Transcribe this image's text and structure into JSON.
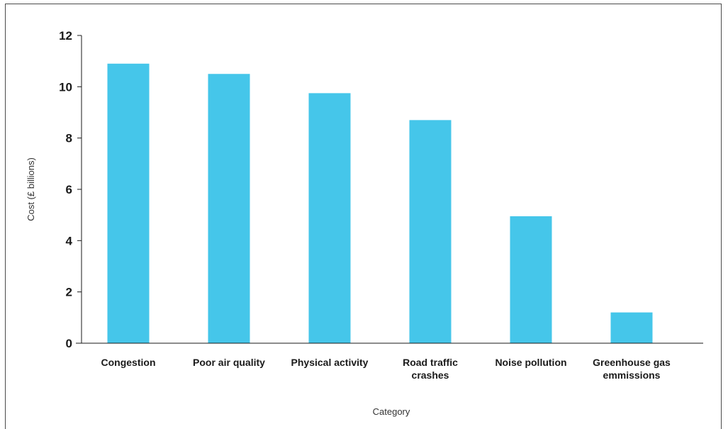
{
  "chart_data": {
    "type": "bar",
    "categories": [
      "Congestion",
      "Poor air quality",
      "Physical activity",
      "Road traffic crashes",
      "Noise pollution",
      "Greenhouse gas emmissions"
    ],
    "category_label_lines": [
      [
        "Congestion"
      ],
      [
        "Poor air quality"
      ],
      [
        "Physical activity"
      ],
      [
        "Road traffic",
        "crashes"
      ],
      [
        "Noise pollution"
      ],
      [
        "Greenhouse gas",
        "emmissions"
      ]
    ],
    "values": [
      10.9,
      10.5,
      9.75,
      8.7,
      4.95,
      1.2
    ],
    "title": "",
    "xlabel": "Category",
    "ylabel": "Cost (£ billions)",
    "ylim": [
      0,
      12
    ],
    "yticks": [
      0,
      2,
      4,
      6,
      8,
      10,
      12
    ],
    "grid": false,
    "bar_color": "#45C6EA",
    "axis_color": "#1a1a1a"
  }
}
